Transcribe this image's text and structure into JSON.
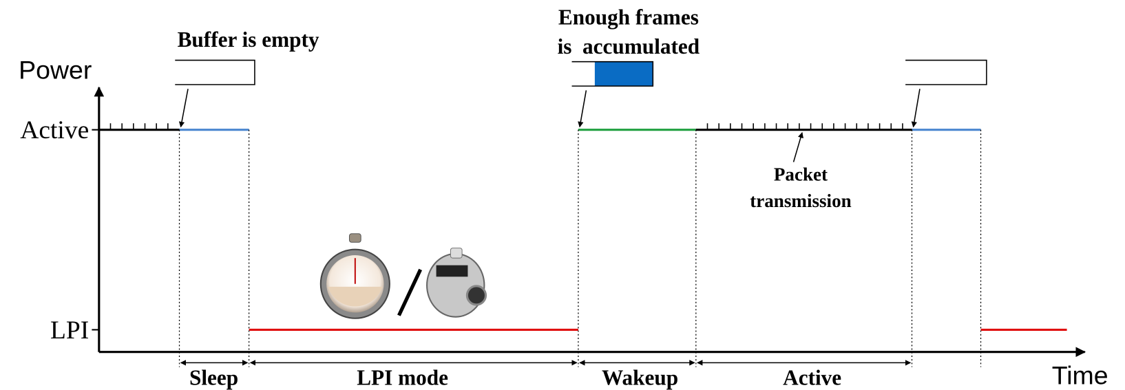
{
  "axes": {
    "y_label": "Power",
    "x_label": "Time",
    "levels": [
      "Active",
      "LPI"
    ]
  },
  "annotations": {
    "buffer_empty": "Buffer is empty",
    "frames_accumulated": [
      "Enough frames",
      "is  accumulated"
    ],
    "packet_transmission": [
      "Packet",
      "transmission"
    ]
  },
  "phases": [
    "Sleep",
    "LPI mode",
    "Wakeup",
    "Active"
  ]
}
